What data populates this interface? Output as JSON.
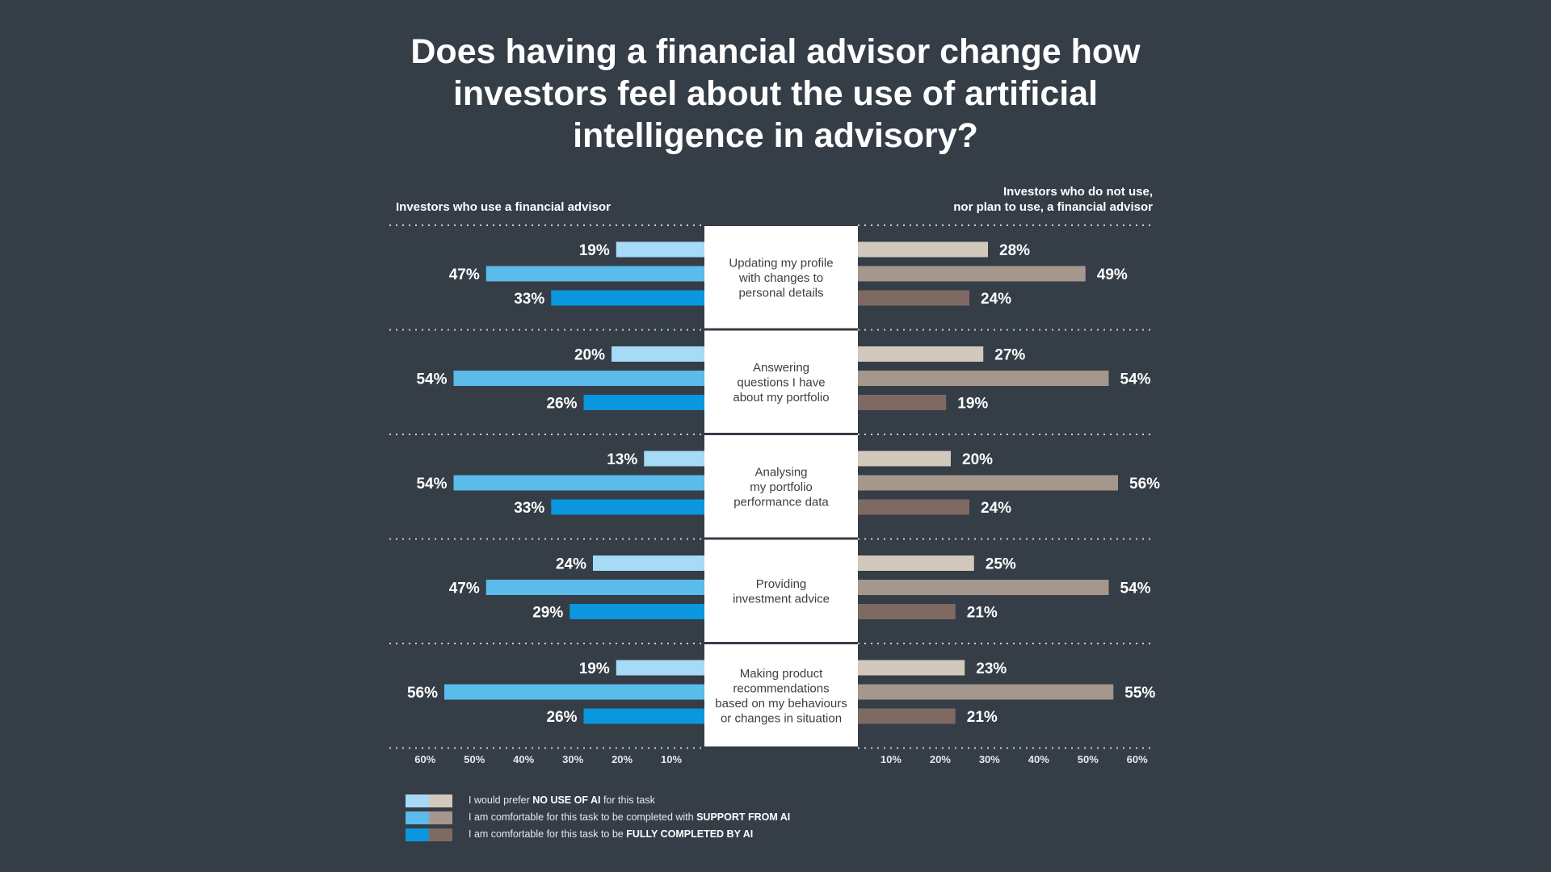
{
  "chart_data": {
    "type": "bar",
    "title_lines": [
      "Does having a financial advisor change how",
      "investors feel about the use of artificial",
      "intelligence in advisory?"
    ],
    "left_panel_label": "Investors who use a financial advisor",
    "right_panel_label_lines": [
      "Investors who do not use,",
      "nor plan to use, a financial advisor"
    ],
    "categories": [
      [
        "Updating my profile",
        "with changes to",
        "personal details"
      ],
      [
        "Answering",
        "questions I have",
        "about my portfolio"
      ],
      [
        "Analysing",
        "my portfolio",
        "performance data"
      ],
      [
        "Providing",
        "investment advice"
      ],
      [
        "Making product",
        "recommendations",
        "based on my behaviours",
        "or changes in situation"
      ]
    ],
    "left_series": [
      {
        "name_prefix": "I would prefer ",
        "name_bold": "NO USE OF AI",
        "name_suffix": " for this task",
        "color": "#a6daf6",
        "values": [
          19,
          20,
          13,
          24,
          19
        ]
      },
      {
        "name_prefix": "I am comfortable for this task to be completed with ",
        "name_bold": "SUPPORT FROM AI",
        "name_suffix": "",
        "color": "#5bbbea",
        "values": [
          47,
          54,
          54,
          47,
          56
        ]
      },
      {
        "name_prefix": "I am comfortable for this task to be ",
        "name_bold": "FULLY COMPLETED BY AI",
        "name_suffix": "",
        "color": "#0b97dd",
        "values": [
          33,
          26,
          33,
          29,
          26
        ]
      }
    ],
    "right_series": [
      {
        "color": "#d1c9bb",
        "values": [
          28,
          27,
          20,
          25,
          23
        ]
      },
      {
        "color": "#a5978c",
        "values": [
          49,
          54,
          56,
          54,
          55
        ]
      },
      {
        "color": "#7e6a63",
        "values": [
          24,
          19,
          24,
          21,
          21
        ]
      }
    ],
    "value_suffix": "%",
    "axis_ticks": [
      10,
      20,
      30,
      40,
      50,
      60
    ],
    "tick_suffix": "%",
    "xlim": [
      0,
      60
    ],
    "grid": "dotted separators"
  }
}
